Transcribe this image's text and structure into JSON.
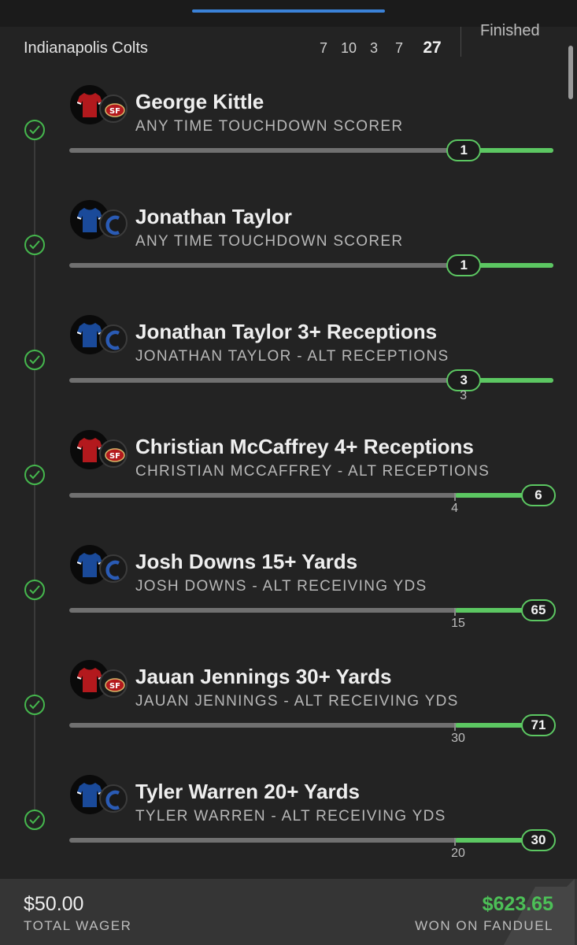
{
  "game": {
    "team": "Indianapolis Colts",
    "quarters": [
      "7",
      "10",
      "3",
      "7"
    ],
    "total": "27",
    "status": "Finished"
  },
  "colors": {
    "accent_green": "#5cc762",
    "won_green": "#4cc057",
    "niners_red": "#b3191d",
    "colts_blue": "#1a4a9a"
  },
  "legs": [
    {
      "title": "George Kittle",
      "subtitle": "ANY TIME TOUCHDOWN SCORER",
      "team": "49ers",
      "value": "1",
      "threshold": "",
      "progress": 0.815
    },
    {
      "title": "Jonathan Taylor",
      "subtitle": "ANY TIME TOUCHDOWN SCORER",
      "team": "Colts",
      "value": "1",
      "threshold": "",
      "progress": 0.815
    },
    {
      "title": "Jonathan Taylor 3+ Receptions",
      "subtitle": "JONATHAN TAYLOR - ALT RECEPTIONS",
      "team": "Colts",
      "value": "3",
      "threshold": "3",
      "progress": 0.815
    },
    {
      "title": "Christian McCaffrey 4+ Receptions",
      "subtitle": "CHRISTIAN MCCAFFREY - ALT RECEPTIONS",
      "team": "49ers",
      "value": "6",
      "threshold": "4",
      "progress": 1.0
    },
    {
      "title": "Josh Downs 15+ Yards",
      "subtitle": "JOSH DOWNS - ALT RECEIVING YDS",
      "team": "Colts",
      "value": "65",
      "threshold": "15",
      "progress": 1.0
    },
    {
      "title": "Jauan Jennings 30+ Yards",
      "subtitle": "JAUAN JENNINGS - ALT RECEIVING YDS",
      "team": "49ers",
      "value": "71",
      "threshold": "30",
      "progress": 1.0
    },
    {
      "title": "Tyler Warren 20+ Yards",
      "subtitle": "TYLER WARREN - ALT RECEIVING YDS",
      "team": "Colts",
      "value": "30",
      "threshold": "20",
      "progress": 1.0
    }
  ],
  "footer": {
    "wager_amount": "$50.00",
    "wager_label": "TOTAL WAGER",
    "won_amount": "$623.65",
    "won_label": "WON ON FANDUEL"
  }
}
